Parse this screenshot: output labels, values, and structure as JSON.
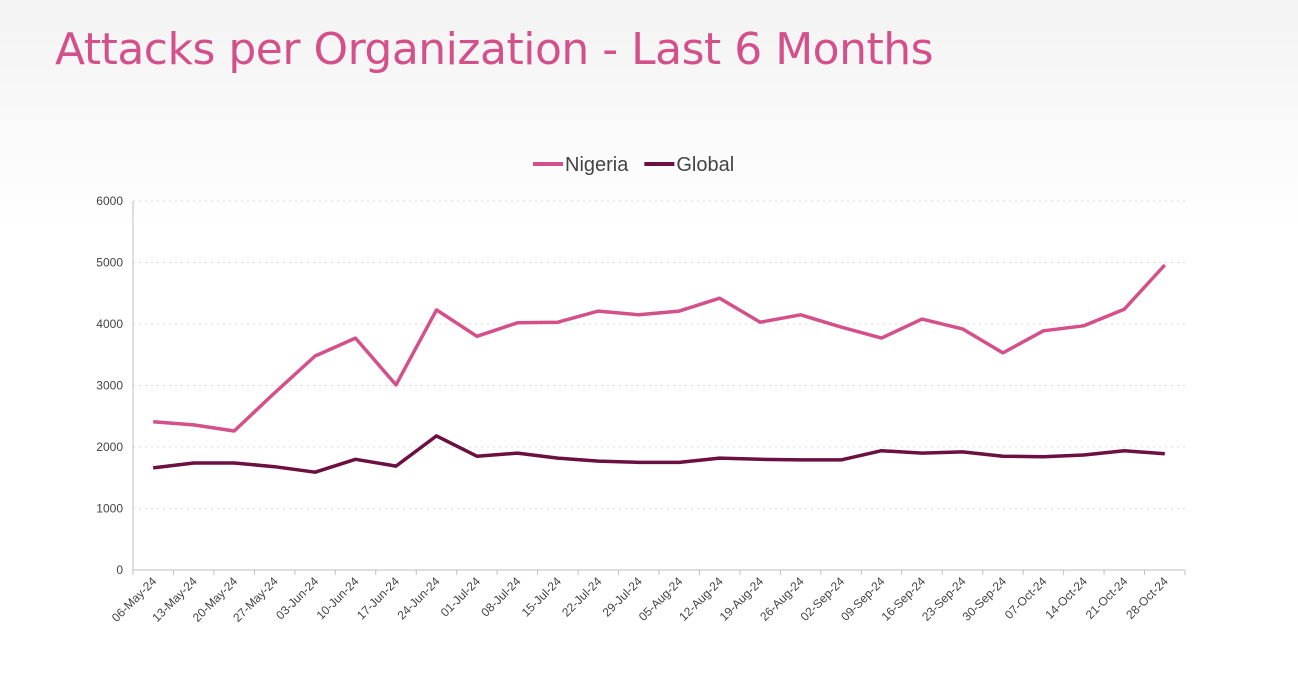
{
  "title": "Attacks per Organization - Last 6 Months",
  "chart_data": {
    "type": "line",
    "title": "Attacks per Organization - Last 6 Months",
    "xlabel": "",
    "ylabel": "",
    "ylim": [
      0,
      6000
    ],
    "yticks": [
      "0",
      "1000",
      "2000",
      "3000",
      "4000",
      "5000",
      "6000"
    ],
    "grid": true,
    "legend": "top-center",
    "categories": [
      "06-May-24",
      "13-May-24",
      "20-May-24",
      "27-May-24",
      "03-Jun-24",
      "10-Jun-24",
      "17-Jun-24",
      "24-Jun-24",
      "01-Jul-24",
      "08-Jul-24",
      "15-Jul-24",
      "22-Jul-24",
      "29-Jul-24",
      "05-Aug-24",
      "12-Aug-24",
      "19-Aug-24",
      "26-Aug-24",
      "02-Sep-24",
      "09-Sep-24",
      "16-Sep-24",
      "23-Sep-24",
      "30-Sep-24",
      "07-Oct-24",
      "14-Oct-24",
      "21-Oct-24",
      "28-Oct-24"
    ],
    "series": [
      {
        "name": "Nigeria",
        "color": "#d4508a",
        "values": [
          2410,
          2360,
          2260,
          2880,
          3480,
          3770,
          3010,
          4230,
          3800,
          4020,
          4030,
          4210,
          4150,
          4210,
          4420,
          4030,
          4150,
          3950,
          3770,
          4080,
          3920,
          3530,
          3890,
          3970,
          4240,
          4960
        ]
      },
      {
        "name": "Global",
        "color": "#6b1040",
        "values": [
          1660,
          1740,
          1740,
          1680,
          1590,
          1800,
          1690,
          2180,
          1850,
          1900,
          1820,
          1770,
          1750,
          1750,
          1820,
          1800,
          1790,
          1790,
          1940,
          1900,
          1920,
          1850,
          1840,
          1870,
          1940,
          1890
        ]
      }
    ]
  }
}
